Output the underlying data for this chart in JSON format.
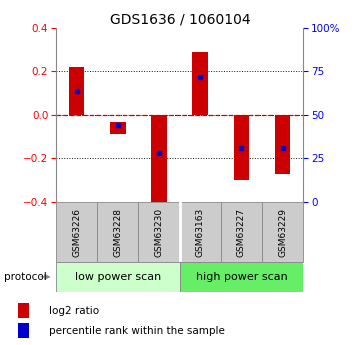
{
  "title": "GDS1636 / 1060104",
  "samples": [
    "GSM63226",
    "GSM63228",
    "GSM63230",
    "GSM63163",
    "GSM63227",
    "GSM63229"
  ],
  "bar_bottom": [
    0.0,
    -0.09,
    -0.42,
    0.0,
    -0.3,
    -0.27
  ],
  "bar_top": [
    0.22,
    -0.035,
    0.0,
    0.29,
    0.0,
    0.0
  ],
  "pct_rank_y": [
    0.11,
    -0.048,
    -0.175,
    0.175,
    -0.155,
    -0.155
  ],
  "ylim": [
    -0.4,
    0.4
  ],
  "yticks_left": [
    -0.4,
    -0.2,
    0.0,
    0.2,
    0.4
  ],
  "yticks_right": [
    0,
    25,
    50,
    75,
    100
  ],
  "bar_color": "#cc0000",
  "marker_color": "#0000cc",
  "zero_line_color": "#cc0000",
  "grid_color": "#111111",
  "low_power_label": "low power scan",
  "high_power_label": "high power scan",
  "low_power_color": "#ccffcc",
  "high_power_color": "#66ee66",
  "protocol_label": "protocol",
  "legend_log2": "log2 ratio",
  "legend_pct": "percentile rank within the sample",
  "sample_box_color": "#cccccc",
  "sample_box_edge": "#888888"
}
